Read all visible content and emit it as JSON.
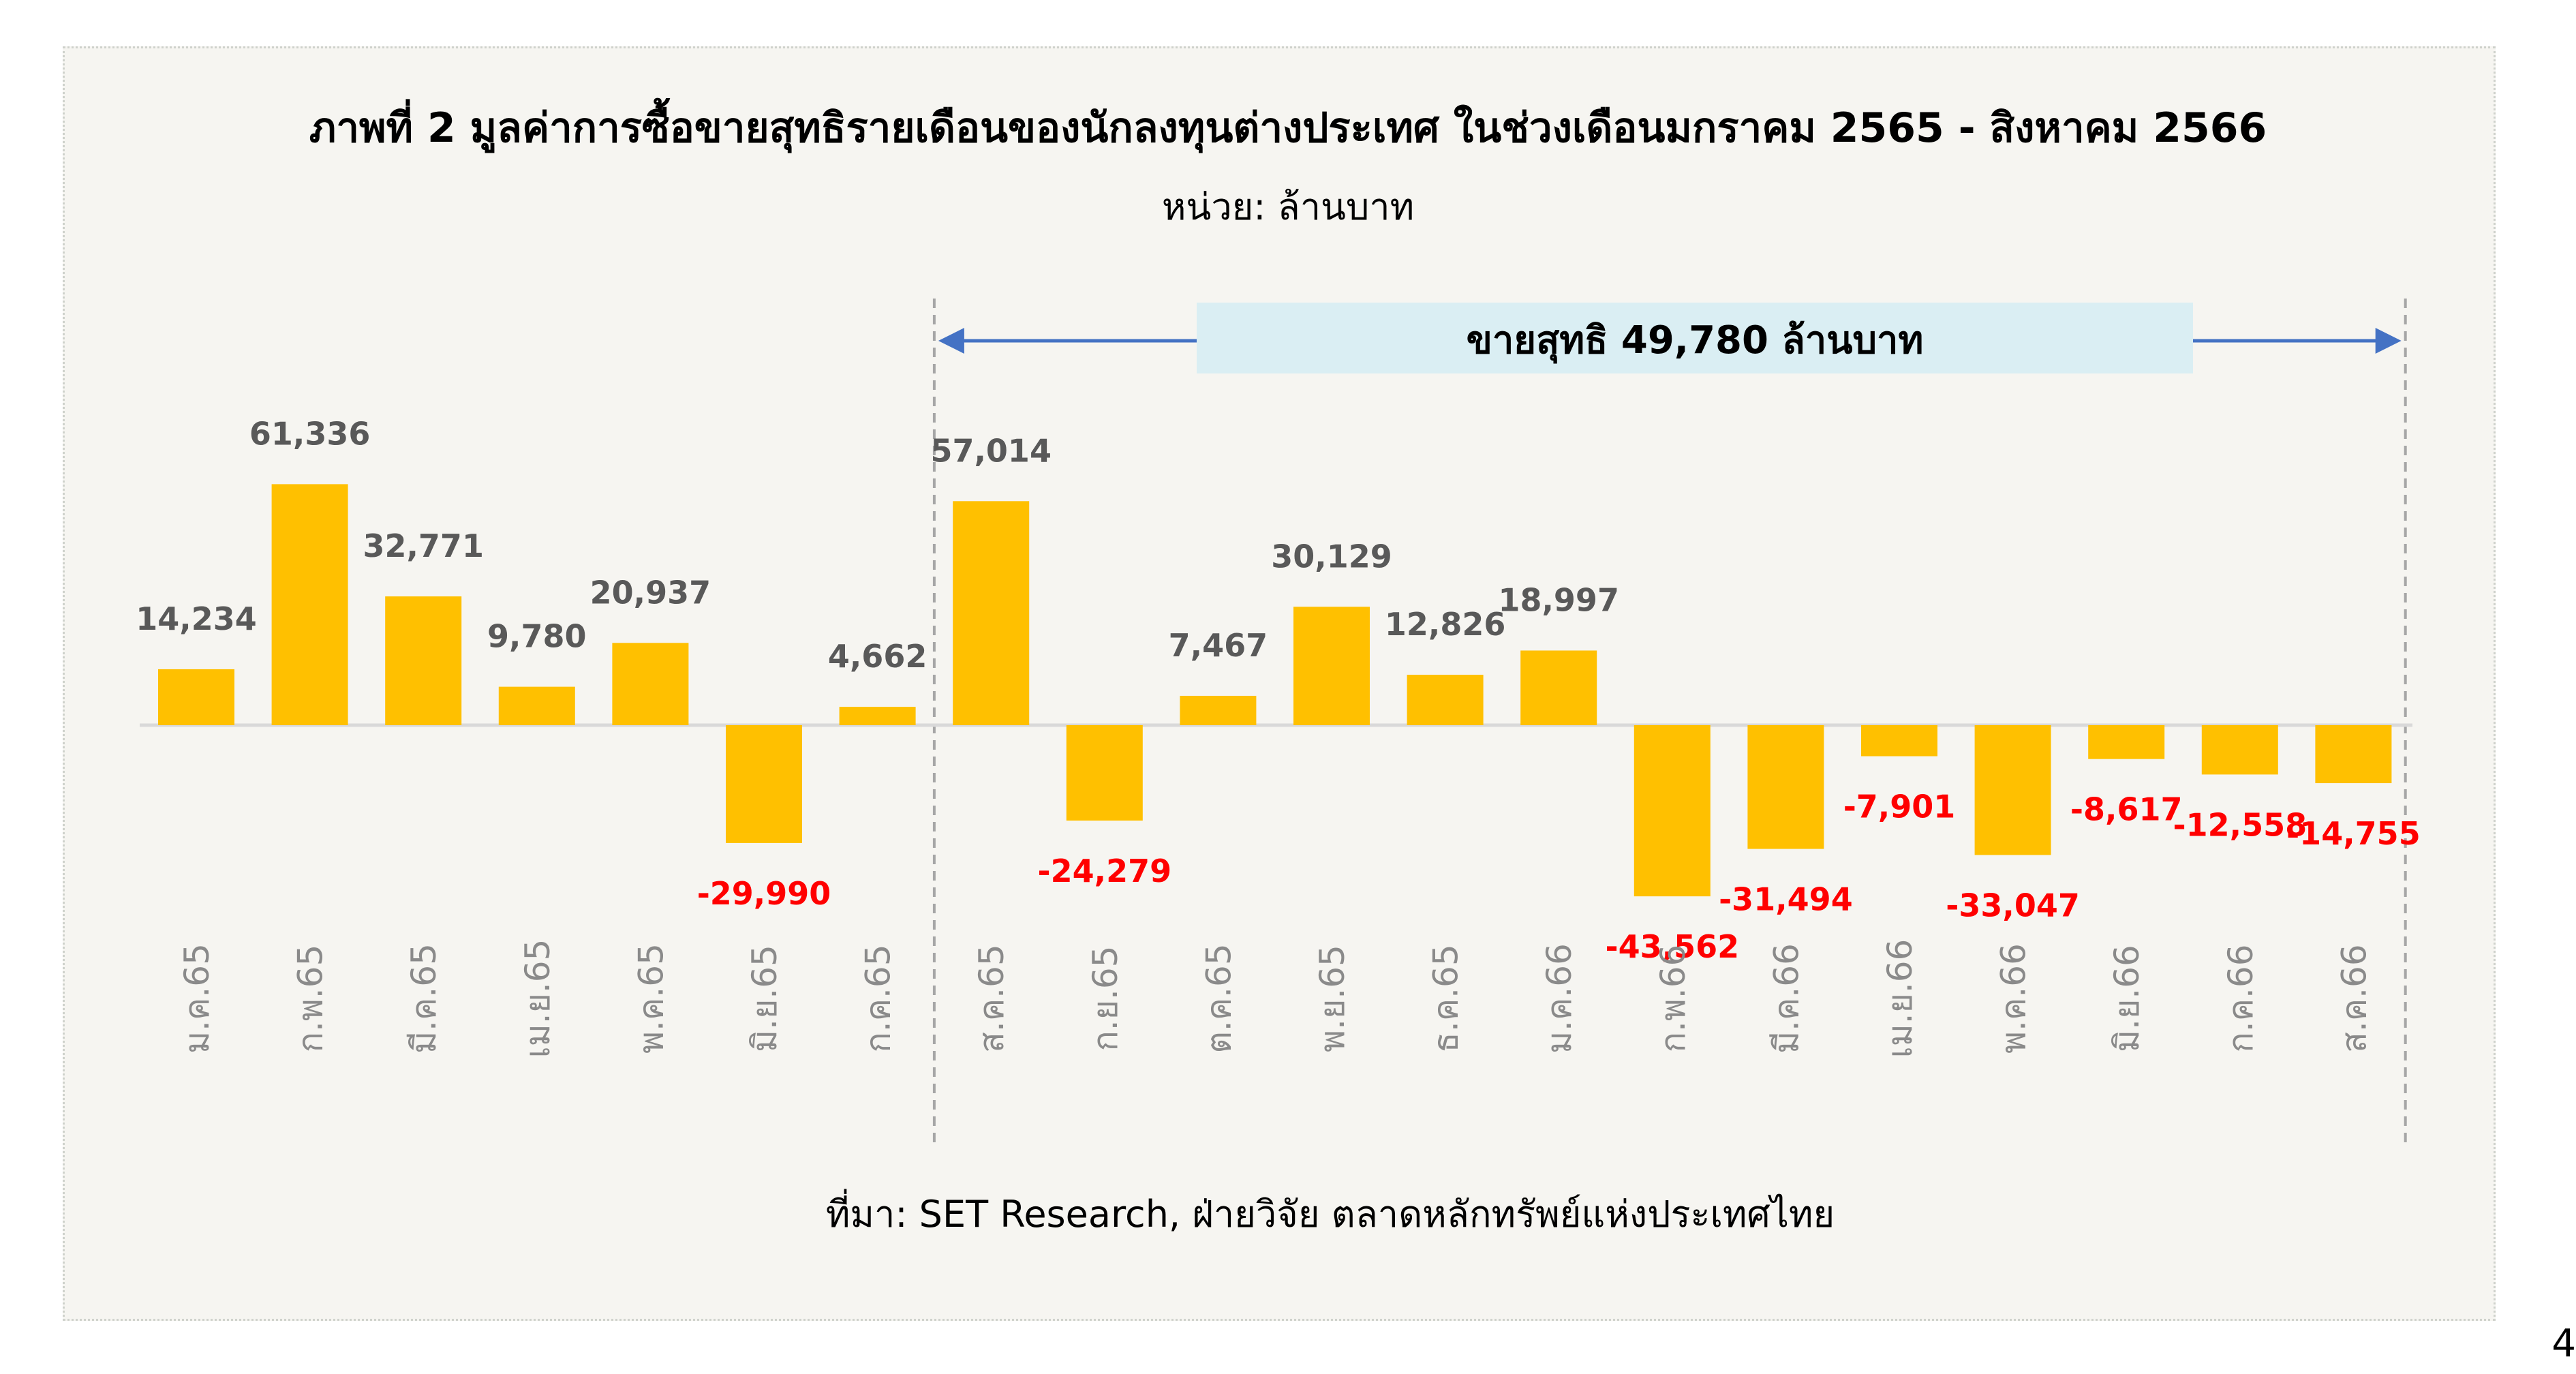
{
  "title": "ภาพที่ 2 มูลค่าการซื้อขายสุทธิรายเดือนของนักลงทุนต่างประเทศ ในช่วงเดือนมกราคม 2565 - สิงหาคม 2566",
  "unit": "หน่วย: ล้านบาท",
  "source": "ที่มา: SET Research, ฝ่ายวิจัย ตลาดหลักทรัพย์แห่งประเทศไทย",
  "page_number": "4",
  "annotation": {
    "text": "ขายสุทธิ 49,780 ล้านบาท",
    "from_category": "ส.ค.65",
    "to_category": "ส.ค.66"
  },
  "colors": {
    "bar": "#FFC000",
    "positive_label": "#595959",
    "negative_label": "#FF0000",
    "banner_fill": "#DAEEF3",
    "arrow": "#4472C4",
    "divider": "#A6A6A6",
    "axis": "#D9D9D9"
  },
  "chart_data": {
    "type": "bar",
    "categories": [
      "ม.ค.65",
      "ก.พ.65",
      "มี.ค.65",
      "เม.ย.65",
      "พ.ค.65",
      "มิ.ย.65",
      "ก.ค.65",
      "ส.ค.65",
      "ก.ย.65",
      "ต.ค.65",
      "พ.ย.65",
      "ธ.ค.65",
      "ม.ค.66",
      "ก.พ.66",
      "มี.ค.66",
      "เม.ย.66",
      "พ.ค.66",
      "มิ.ย.66",
      "ก.ค.66",
      "ส.ค.66"
    ],
    "values": [
      14234,
      61336,
      32771,
      9780,
      20937,
      -29990,
      4662,
      57014,
      -24279,
      7467,
      30129,
      12826,
      18997,
      -43562,
      -31494,
      -7901,
      -33047,
      -8617,
      -12558,
      -14755
    ],
    "data_labels": [
      "14,234",
      "61,336",
      "32,771",
      "9,780",
      "20,937",
      "-29,990",
      "4,662",
      "57,014",
      "-24,279",
      "7,467",
      "30,129",
      "12,826",
      "18,997",
      "-43,562",
      "-31,494",
      "-7,901",
      "-33,047",
      "-8,617",
      "-12,558",
      "-14,755"
    ],
    "ylabel": "",
    "xlabel": "",
    "grid": false,
    "legend": false
  }
}
